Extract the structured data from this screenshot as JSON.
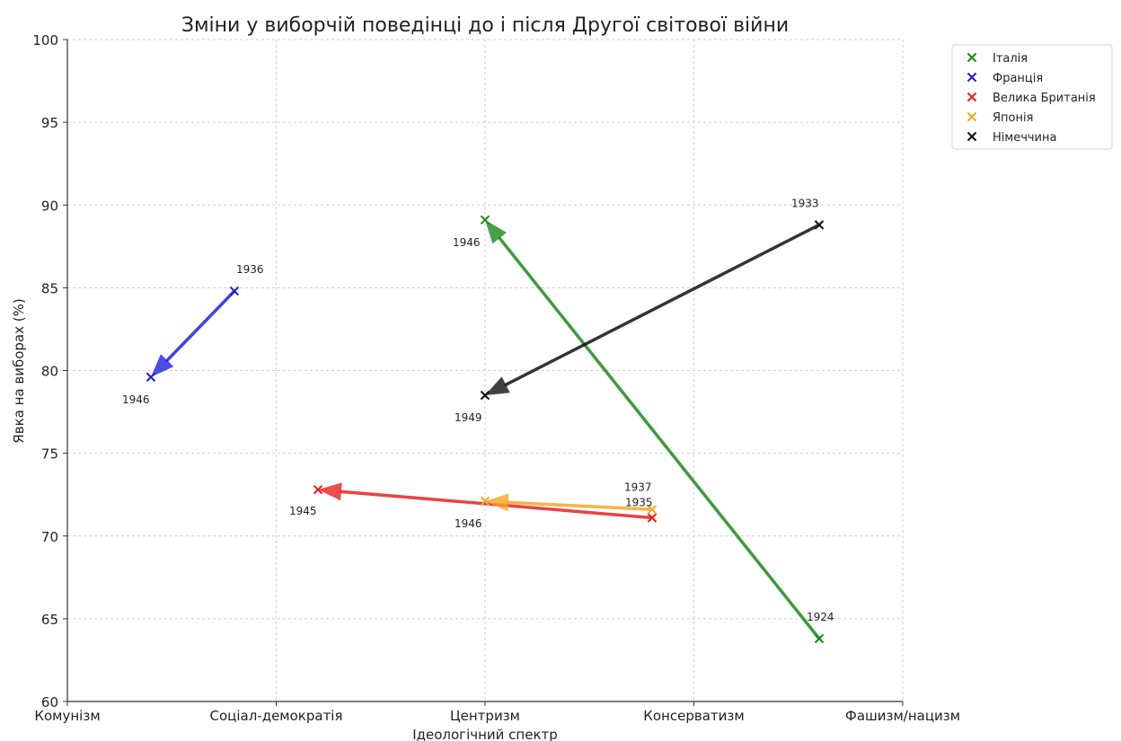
{
  "chart_data": {
    "type": "scatter",
    "title": "Зміни у виборчій поведінці до і після Другої світової війни",
    "xlabel": "Ідеологічний спектр",
    "ylabel": "Явка на виборах (%)",
    "x_categories": [
      "Комунізм",
      "Соціал-демократія",
      "Центризм",
      "Консерватизм",
      "Фашизм/нацизм"
    ],
    "xlim": [
      0,
      4
    ],
    "ylim": [
      60,
      100
    ],
    "y_ticks": [
      60,
      65,
      70,
      75,
      80,
      85,
      90,
      95,
      100
    ],
    "grid": true,
    "legend_position": "top-right",
    "series": [
      {
        "name": "Італія",
        "color": "#1a8a1a",
        "points": [
          {
            "year": "1924",
            "x": 3.6,
            "y": 63.8
          },
          {
            "year": "1946",
            "x": 2.0,
            "y": 89.1
          }
        ]
      },
      {
        "name": "Франція",
        "color": "#1f1fe0",
        "points": [
          {
            "year": "1936",
            "x": 0.8,
            "y": 84.8
          },
          {
            "year": "1946",
            "x": 0.4,
            "y": 79.6
          }
        ]
      },
      {
        "name": "Велика Британія",
        "color": "#e82020",
        "points": [
          {
            "year": "1935",
            "x": 2.8,
            "y": 71.1
          },
          {
            "year": "1945",
            "x": 1.2,
            "y": 72.8
          }
        ]
      },
      {
        "name": "Японія",
        "color": "#f5a623",
        "points": [
          {
            "year": "1937",
            "x": 2.8,
            "y": 71.6
          },
          {
            "year": "1946",
            "x": 2.0,
            "y": 72.1
          }
        ]
      },
      {
        "name": "Німеччина",
        "color": "#111111",
        "points": [
          {
            "year": "1933",
            "x": 3.6,
            "y": 88.8
          },
          {
            "year": "1949",
            "x": 2.0,
            "y": 78.5
          }
        ]
      }
    ]
  }
}
